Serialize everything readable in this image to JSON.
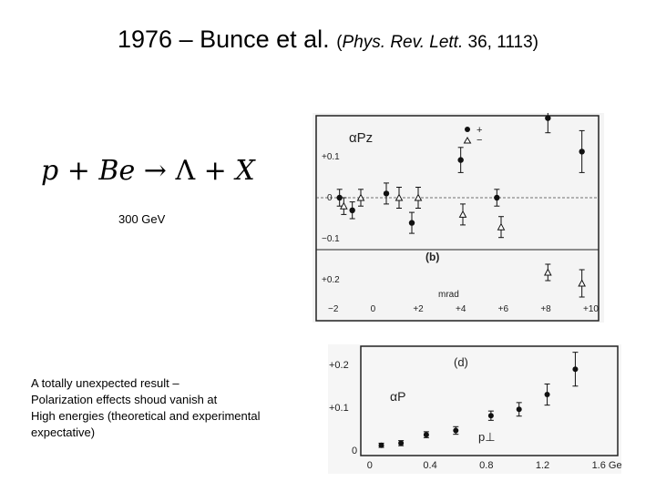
{
  "title": {
    "main": "1976 – Bunce et al.",
    "journal": "Phys. Rev. Lett.",
    "citation_rest": " 36, 1113)",
    "open_paren": "("
  },
  "reaction": {
    "lhs": "p + Be",
    "arrow": "→",
    "rhs_particle": "Λ",
    "rhs_rest": " + X"
  },
  "energy_label": "300 GeV",
  "comment_lines": [
    "A totally unexpected result –",
    "Polarization effects shoud vanish at",
    "High energies (theoretical and experimental",
    "expectative)"
  ],
  "chart_data": [
    {
      "type": "scatter",
      "panel_label": "(b)",
      "xlabel": "mrad",
      "xlim": [
        -2.3,
        10.3
      ],
      "x_ticks": [
        -2,
        0,
        2,
        4,
        6,
        8,
        10
      ],
      "x_tick_labels": [
        "−2",
        "0",
        "+2",
        "+4",
        "+6",
        "+8",
        "+10"
      ],
      "y_tick_labels": [
        "+0.1",
        "0",
        "−0.1",
        "+0.2"
      ],
      "ylabel": "αPz",
      "legend_symbols": [
        "+",
        "−"
      ],
      "series": [
        {
          "name": "+",
          "marker": "filled-circle",
          "points": [
            [
              -1.8,
              0.0,
              0.02
            ],
            [
              -1.2,
              -0.03,
              0.02
            ],
            [
              0.4,
              0.01,
              0.025
            ],
            [
              1.6,
              -0.06,
              0.025
            ],
            [
              3.9,
              0.09,
              0.03
            ],
            [
              5.6,
              0.0,
              0.02
            ],
            [
              8.0,
              0.19,
              0.035
            ],
            [
              9.6,
              0.11,
              0.05
            ]
          ]
        },
        {
          "name": "−",
          "marker": "open-triangle",
          "points": [
            [
              -1.6,
              -0.02,
              0.02
            ],
            [
              -0.8,
              0.0,
              0.02
            ],
            [
              1.0,
              0.0,
              0.025
            ],
            [
              1.9,
              0.0,
              0.025
            ],
            [
              4.0,
              -0.04,
              0.025
            ],
            [
              5.8,
              -0.07,
              0.025
            ],
            [
              8.0,
              -0.25,
              0.03
            ],
            [
              9.6,
              -0.28,
              0.05
            ]
          ]
        }
      ]
    },
    {
      "type": "scatter",
      "panel_label": "(d)",
      "ylabel": "αP",
      "xlabel": "p⊥",
      "xlim": [
        -0.05,
        1.7
      ],
      "ylim": [
        -0.02,
        0.23
      ],
      "x_tick_labels": [
        "0",
        "0.4",
        "0.8",
        "1.2",
        "1.6 GeV/c"
      ],
      "y_tick_labels": [
        "+0.2",
        "+0.1",
        "0"
      ],
      "x": [
        0.07,
        0.21,
        0.39,
        0.6,
        0.85,
        1.05,
        1.25,
        1.45
      ],
      "y": [
        0.0,
        0.005,
        0.025,
        0.035,
        0.07,
        0.085,
        0.12,
        0.18
      ],
      "err": [
        0.005,
        0.006,
        0.007,
        0.009,
        0.011,
        0.016,
        0.025,
        0.04
      ]
    }
  ]
}
